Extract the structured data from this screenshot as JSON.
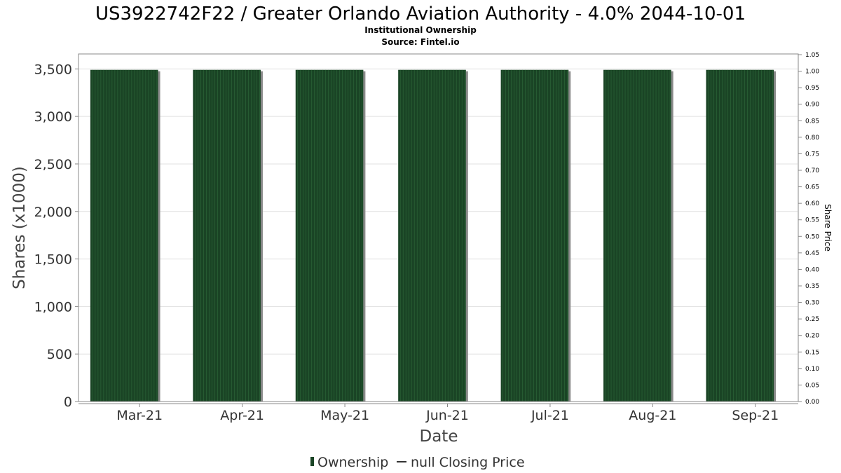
{
  "chart_data": {
    "type": "bar",
    "title": "US3922742F22 / Greater Orlando Aviation Authority - 4.0% 2044-10-01",
    "subtitle": "Institutional Ownership",
    "source": "Source: Fintel.io",
    "xlabel": "Date",
    "ylabel": "Shares (x1000)",
    "y2label": "Share Price",
    "categories": [
      "Mar-21",
      "Apr-21",
      "May-21",
      "Jun-21",
      "Jul-21",
      "Aug-21",
      "Sep-21"
    ],
    "series": [
      {
        "name": "Ownership",
        "values": [
          3490,
          3490,
          3490,
          3490,
          3490,
          3490,
          3490
        ]
      }
    ],
    "ylim": [
      0,
      3650
    ],
    "yticks": [
      0,
      500,
      1000,
      1500,
      2000,
      2500,
      3000,
      3500
    ],
    "ytick_labels": [
      "0",
      "500",
      "1,000",
      "1,500",
      "2,000",
      "2,500",
      "3,000",
      "3,500"
    ],
    "y2lim": [
      0,
      1.05
    ],
    "y2ticks": [
      "0.00",
      "0.05",
      "0.10",
      "0.15",
      "0.20",
      "0.25",
      "0.30",
      "0.35",
      "0.40",
      "0.45",
      "0.50",
      "0.55",
      "0.60",
      "0.65",
      "0.70",
      "0.75",
      "0.80",
      "0.85",
      "0.90",
      "0.95",
      "1.00",
      "1.05"
    ],
    "legend": [
      {
        "label": "Ownership",
        "marker": "bar"
      },
      {
        "label": "null Closing Price",
        "marker": "line"
      }
    ],
    "legend_position": "bottom",
    "grid": true,
    "colors": {
      "bar": "#1a4425",
      "bar_stripe": "#2f6a3b",
      "bar_shadow": "#8a8a8a",
      "grid": "#e0e0e0",
      "axis": "#888888"
    }
  }
}
